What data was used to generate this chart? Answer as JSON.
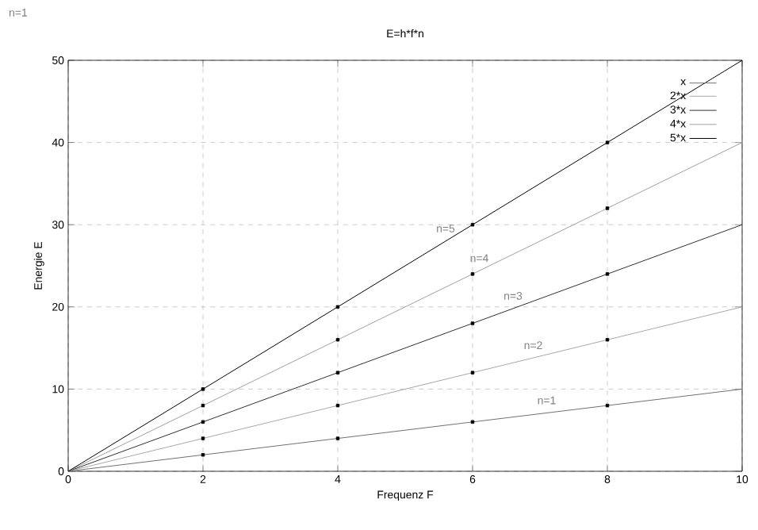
{
  "chart_data": {
    "type": "line",
    "title": "E=h*f*n",
    "xlabel": "Frequenz F",
    "ylabel": "Energie E",
    "x": [
      0,
      10
    ],
    "series": [
      {
        "name": "x",
        "color": "#707070",
        "values": [
          0,
          10
        ]
      },
      {
        "name": "2*x",
        "color": "#a8a8a8",
        "values": [
          0,
          20
        ]
      },
      {
        "name": "3*x",
        "color": "#303030",
        "values": [
          0,
          30
        ]
      },
      {
        "name": "4*x",
        "color": "#a0a0a0",
        "values": [
          0,
          40
        ]
      },
      {
        "name": "5*x",
        "color": "#000000",
        "values": [
          0,
          50
        ]
      },
      {
        "type": "scatter",
        "color": "#000000",
        "marker": "square",
        "x": [
          2,
          4,
          6,
          8,
          2,
          4,
          6,
          8,
          2,
          4,
          6,
          8,
          2,
          4,
          6,
          8,
          2,
          4,
          6,
          8
        ],
        "values": [
          2,
          4,
          6,
          8,
          4,
          8,
          12,
          16,
          6,
          12,
          18,
          24,
          8,
          16,
          24,
          32,
          10,
          20,
          30,
          40
        ]
      }
    ],
    "xlim": [
      0,
      10
    ],
    "ylim": [
      0,
      50
    ],
    "xticks": [
      0,
      2,
      4,
      6,
      8,
      10
    ],
    "yticks": [
      0,
      10,
      20,
      30,
      40,
      50
    ],
    "grid": true,
    "legend": "top right",
    "marker": "none",
    "line_style": "solid",
    "annotations": [
      "n=1",
      {
        "text": "n=5",
        "x": 5.6,
        "y": 28
      },
      {
        "text": "n=4",
        "x": 6.1,
        "y": 24.4
      },
      {
        "text": "n=3",
        "x": 6.6,
        "y": 19.8
      },
      {
        "text": "n=2",
        "x": 6.9,
        "y": 13.8
      },
      {
        "text": "n=1",
        "x": 7.1,
        "y": 7.1
      }
    ]
  }
}
